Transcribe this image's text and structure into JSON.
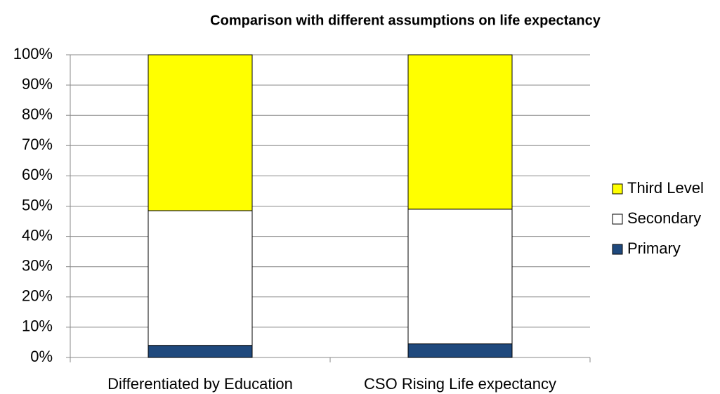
{
  "chart_data": {
    "type": "stacked_bar",
    "title": "Comparison with different assumptions on life expectancy",
    "categories": [
      "Differentiated by Education",
      "CSO Rising Life expectancy"
    ],
    "series": [
      {
        "name": "Primary",
        "color": "#1f497d",
        "values": [
          4,
          4.5
        ]
      },
      {
        "name": "Secondary",
        "color": "#ffffff",
        "values": [
          44.5,
          44.5
        ]
      },
      {
        "name": "Third Level",
        "color": "#ffff00",
        "values": [
          51.5,
          51
        ]
      }
    ],
    "ylim": [
      0,
      100
    ],
    "yticks": [
      {
        "value": 0,
        "label": "0%"
      },
      {
        "value": 10,
        "label": "10%"
      },
      {
        "value": 20,
        "label": "20%"
      },
      {
        "value": 30,
        "label": "30%"
      },
      {
        "value": 40,
        "label": "40%"
      },
      {
        "value": 50,
        "label": "50%"
      },
      {
        "value": 60,
        "label": "60%"
      },
      {
        "value": 70,
        "label": "70%"
      },
      {
        "value": 80,
        "label": "80%"
      },
      {
        "value": 90,
        "label": "90%"
      },
      {
        "value": 100,
        "label": "100%"
      }
    ],
    "grid": true,
    "legend": "right"
  }
}
